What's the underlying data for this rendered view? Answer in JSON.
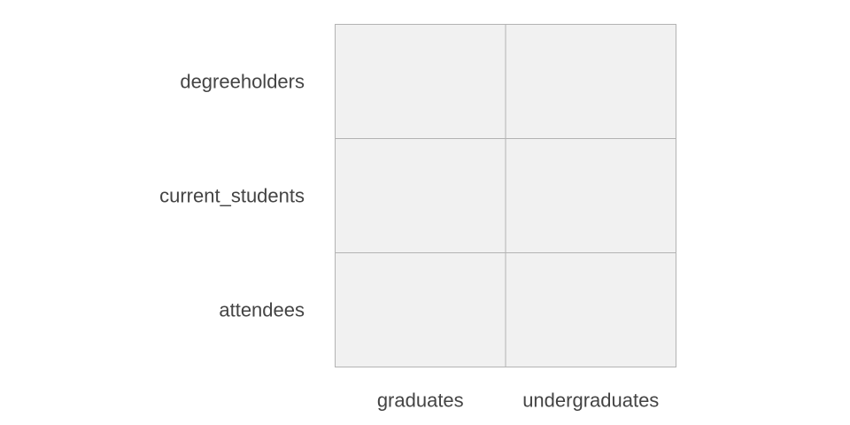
{
  "chart_data": {
    "type": "heatmap",
    "title": "",
    "xlabel": "",
    "ylabel": "",
    "x_categories": [
      "graduates",
      "undergraduates"
    ],
    "y_categories": [
      "degreeholders",
      "current_students",
      "attendees"
    ],
    "values": [
      [
        null,
        null
      ],
      [
        null,
        null
      ],
      [
        null,
        null
      ]
    ],
    "cell_color": "#f1f1f1",
    "grid_color": "#b3b3b3",
    "label_color": "#444444",
    "legend": "none"
  }
}
